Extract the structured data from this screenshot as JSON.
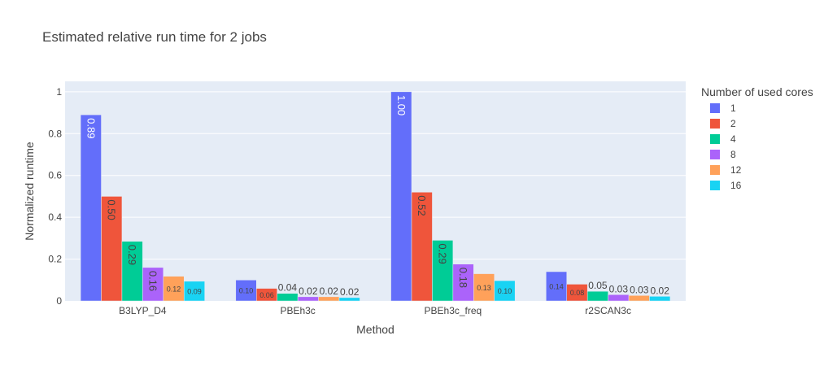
{
  "chart_data": {
    "type": "bar",
    "title": "Estimated relative run time for 2 jobs",
    "xlabel": "Method",
    "ylabel": "Normalized runtime",
    "ylim": [
      0,
      1.05
    ],
    "yticks": [
      0,
      0.2,
      0.4,
      0.6,
      0.8,
      1
    ],
    "ytick_labels": [
      "0",
      "0.2",
      "0.4",
      "0.6",
      "0.8",
      "1"
    ],
    "grid": true,
    "legend": {
      "title": "Number of used cores",
      "placement": "right"
    },
    "categories": [
      "B3LYP_D4",
      "PBEh3c",
      "PBEh3c_freq",
      "r2SCAN3c"
    ],
    "series": [
      {
        "name": "1",
        "color": "#636efa",
        "values": [
          0.89,
          0.1,
          1.0,
          0.14
        ],
        "labels": [
          "0.89",
          "0.10",
          "1.00",
          "0.14"
        ]
      },
      {
        "name": "2",
        "color": "#EF553B",
        "values": [
          0.5,
          0.06,
          0.52,
          0.08
        ],
        "labels": [
          "0.50",
          "0.06",
          "0.52",
          "0.08"
        ]
      },
      {
        "name": "4",
        "color": "#00cc96",
        "values": [
          0.285,
          0.036,
          0.29,
          0.046
        ],
        "labels": [
          "0.29",
          "0.04",
          "0.29",
          "0.05"
        ]
      },
      {
        "name": "8",
        "color": "#ab63fa",
        "values": [
          0.16,
          0.02,
          0.176,
          0.03
        ],
        "labels": [
          "0.16",
          "0.02",
          "0.18",
          "0.03"
        ]
      },
      {
        "name": "12",
        "color": "#FFA15A",
        "values": [
          0.118,
          0.02,
          0.13,
          0.026
        ],
        "labels": [
          "0.12",
          "0.02",
          "0.13",
          "0.03"
        ]
      },
      {
        "name": "16",
        "color": "#19d3f3",
        "values": [
          0.094,
          0.016,
          0.097,
          0.022
        ],
        "labels": [
          "0.09",
          "0.02",
          "0.10",
          "0.02"
        ]
      }
    ]
  }
}
